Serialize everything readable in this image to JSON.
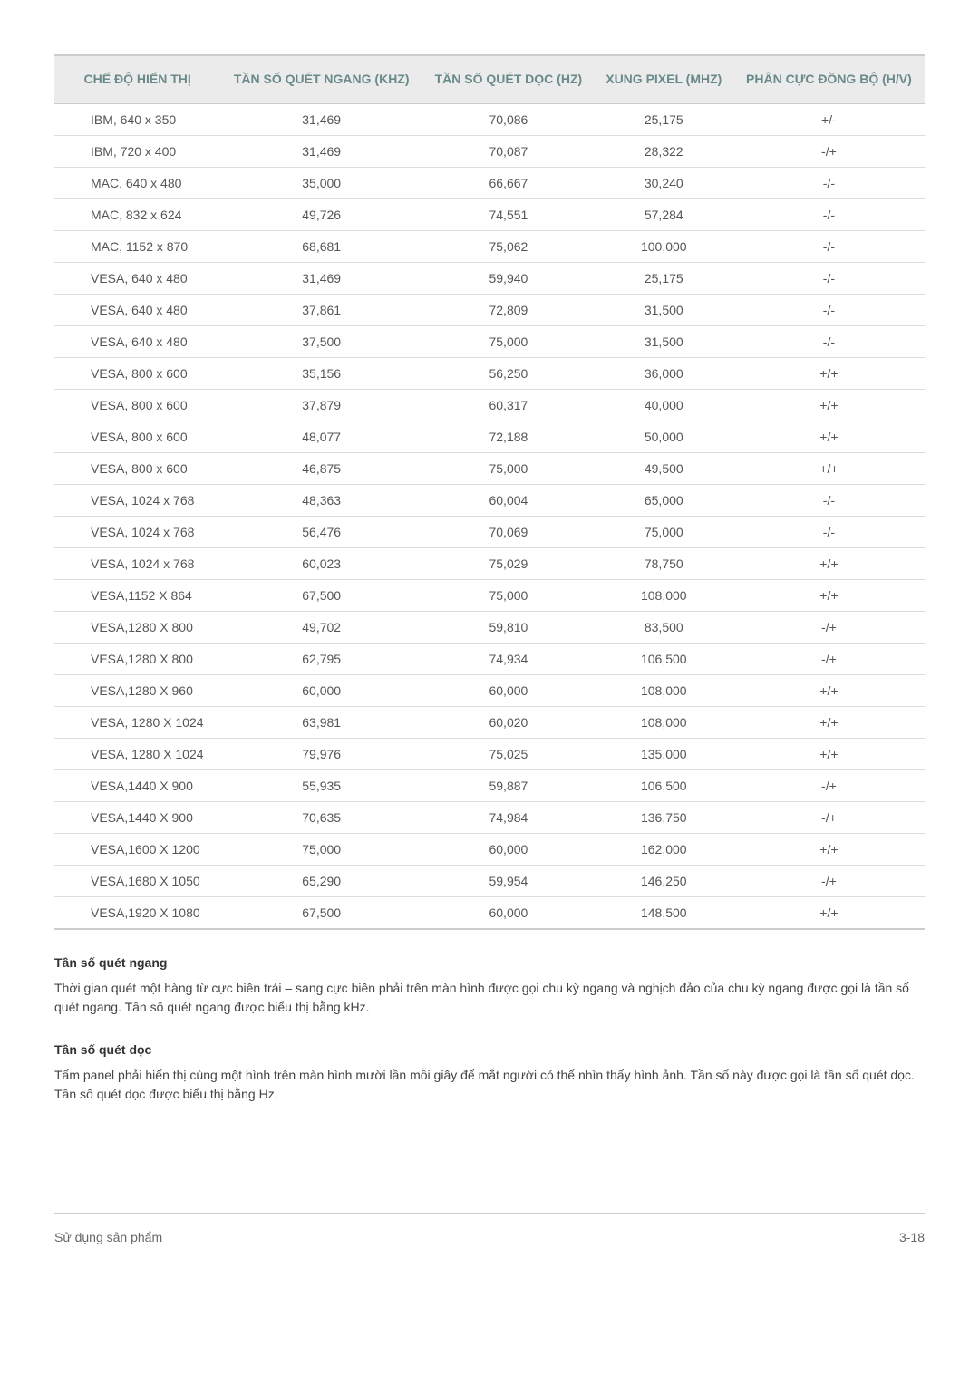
{
  "table": {
    "columns": [
      "CHẾ ĐỘ HIỂN THỊ",
      "TẦN SỐ QUÉT NGANG (KHZ)",
      "TẦN SỐ QUÉT DỌC (HZ)",
      "XUNG PIXEL (MHZ)",
      "PHÂN CỰC ĐỒNG BỘ (H/V)"
    ],
    "rows": [
      [
        "IBM, 640 x 350",
        "31,469",
        "70,086",
        "25,175",
        "+/-"
      ],
      [
        "IBM, 720 x 400",
        "31,469",
        "70,087",
        "28,322",
        "-/+"
      ],
      [
        "MAC, 640 x 480",
        "35,000",
        "66,667",
        "30,240",
        "-/-"
      ],
      [
        "MAC, 832 x 624",
        "49,726",
        "74,551",
        "57,284",
        "-/-"
      ],
      [
        "MAC, 1152 x 870",
        "68,681",
        "75,062",
        "100,000",
        "-/-"
      ],
      [
        "VESA, 640 x 480",
        "31,469",
        "59,940",
        "25,175",
        "-/-"
      ],
      [
        "VESA, 640 x 480",
        "37,861",
        "72,809",
        "31,500",
        "-/-"
      ],
      [
        "VESA, 640 x 480",
        "37,500",
        "75,000",
        "31,500",
        "-/-"
      ],
      [
        "VESA, 800 x 600",
        "35,156",
        "56,250",
        "36,000",
        "+/+"
      ],
      [
        "VESA, 800 x 600",
        "37,879",
        "60,317",
        "40,000",
        "+/+"
      ],
      [
        "VESA, 800 x 600",
        "48,077",
        "72,188",
        "50,000",
        "+/+"
      ],
      [
        "VESA, 800 x 600",
        "46,875",
        "75,000",
        "49,500",
        "+/+"
      ],
      [
        "VESA, 1024 x 768",
        "48,363",
        "60,004",
        "65,000",
        "-/-"
      ],
      [
        "VESA, 1024 x 768",
        "56,476",
        "70,069",
        "75,000",
        "-/-"
      ],
      [
        "VESA, 1024 x 768",
        "60,023",
        "75,029",
        "78,750",
        "+/+"
      ],
      [
        "VESA,1152 X 864",
        "67,500",
        "75,000",
        "108,000",
        "+/+"
      ],
      [
        "VESA,1280 X 800",
        "49,702",
        "59,810",
        "83,500",
        "-/+"
      ],
      [
        "VESA,1280 X 800",
        "62,795",
        "74,934",
        "106,500",
        "-/+"
      ],
      [
        "VESA,1280 X 960",
        "60,000",
        "60,000",
        "108,000",
        "+/+"
      ],
      [
        "VESA, 1280 X 1024",
        "63,981",
        "60,020",
        "108,000",
        "+/+"
      ],
      [
        "VESA, 1280 X 1024",
        "79,976",
        "75,025",
        "135,000",
        "+/+"
      ],
      [
        "VESA,1440 X 900",
        "55,935",
        "59,887",
        "106,500",
        "-/+"
      ],
      [
        "VESA,1440 X 900",
        "70,635",
        "74,984",
        "136,750",
        "-/+"
      ],
      [
        "VESA,1600 X 1200",
        "75,000",
        "60,000",
        "162,000",
        "+/+"
      ],
      [
        "VESA,1680 X 1050",
        "65,290",
        "59,954",
        "146,250",
        "-/+"
      ],
      [
        "VESA,1920 X 1080",
        "67,500",
        "60,000",
        "148,500",
        "+/+"
      ]
    ]
  },
  "sections": {
    "horiz_title": "Tần số quét ngang",
    "horiz_text": "Thời gian quét một hàng từ cực biên trái – sang cực biên phải trên màn hình được gọi chu kỳ ngang và nghịch đảo của chu kỳ ngang được gọi là tần số quét ngang. Tần số quét ngang được biểu thị bằng kHz.",
    "vert_title": "Tần số quét dọc",
    "vert_text": "Tấm panel phải hiển thị cùng một hình trên màn hình mười lần mỗi giây để mắt người có thể nhìn thấy hình ảnh. Tần số này được gọi là tần số quét dọc. Tần số quét dọc được biểu thị bằng Hz."
  },
  "footer": {
    "left": "Sử dụng sản phẩm",
    "right": "3-18"
  }
}
